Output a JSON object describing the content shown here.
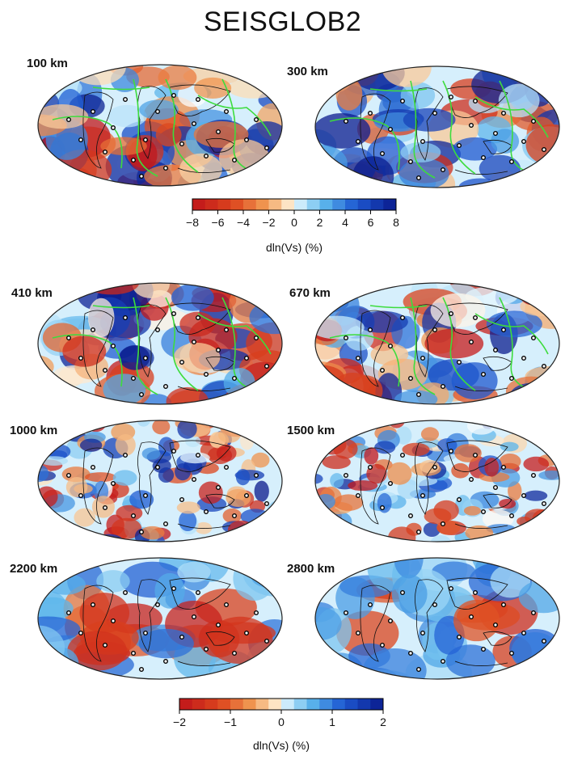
{
  "title": "SEISGLOB2",
  "panels": [
    {
      "depth": "100 km",
      "palette": "upper",
      "plates": true
    },
    {
      "depth": "300 km",
      "palette": "upper",
      "plates": true
    },
    {
      "depth": "410 km",
      "palette": "upper",
      "plates": true
    },
    {
      "depth": "670 km",
      "palette": "upper",
      "plates": true
    },
    {
      "depth": "1000 km",
      "palette": "mid",
      "plates": false
    },
    {
      "depth": "1500 km",
      "palette": "mid",
      "plates": false
    },
    {
      "depth": "2200 km",
      "palette": "lower",
      "plates": false
    },
    {
      "depth": "2800 km",
      "palette": "lower",
      "plates": false
    }
  ],
  "colorbars": [
    {
      "ticks": [
        "−8",
        "−6",
        "−4",
        "−2",
        "0",
        "2",
        "4",
        "6",
        "8"
      ],
      "label": "dln(Vs) (%)",
      "segments": 16
    },
    {
      "ticks": [
        "−2",
        "−1",
        "0",
        "1",
        "2"
      ],
      "label": "dln(Vs) (%)",
      "segments": 16
    }
  ],
  "colors": {
    "slow": "#c0141b",
    "neutral": "#ffffff",
    "fast": "#0a1a8c",
    "plate_boundaries": "#3ddc3d",
    "coastlines": "#111111",
    "hotspots": "#000000"
  }
}
